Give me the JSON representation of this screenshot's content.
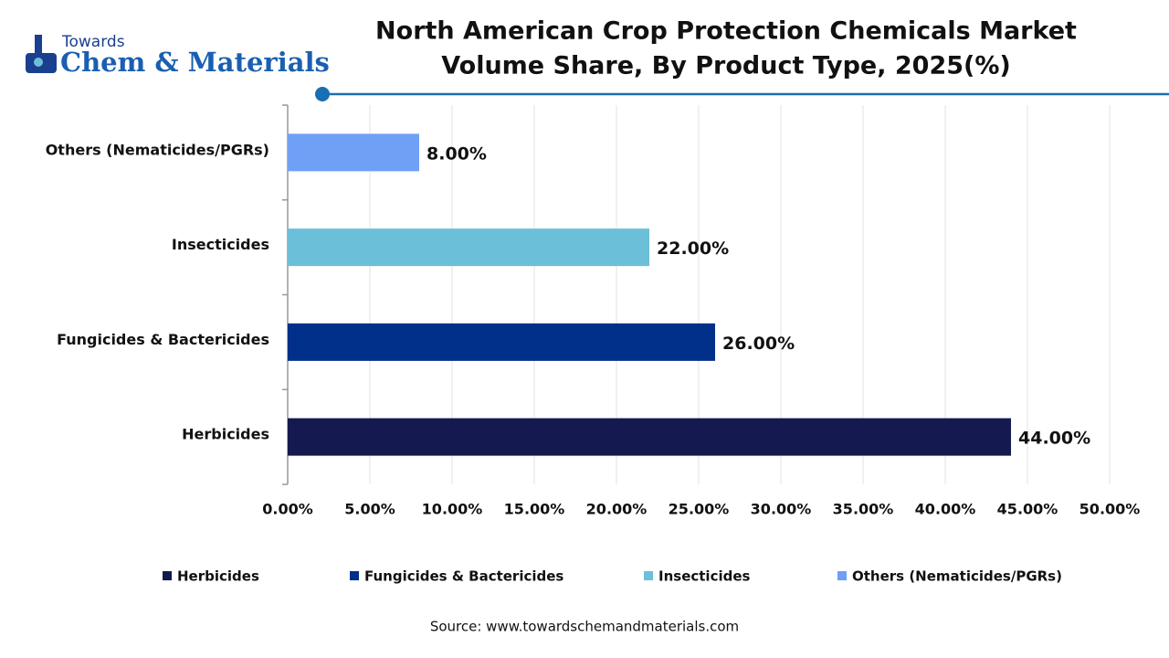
{
  "logo": {
    "top": "Towards",
    "main": "Chem & Materials"
  },
  "chart_data": {
    "type": "bar",
    "orientation": "horizontal",
    "title": [
      "North American Crop Protection Chemicals Market",
      "Volume Share, By Product Type, 2025(%)"
    ],
    "categories": [
      "Herbicides",
      "Fungicides & Bactericides",
      "Insecticides",
      "Others (Nematicides/PGRs)"
    ],
    "values": [
      44,
      26,
      22,
      8
    ],
    "value_labels": [
      "44.00%",
      "26.00%",
      "22.00%",
      "8.00%"
    ],
    "colors": [
      "#14194f",
      "#00308a",
      "#6cbfd9",
      "#6fa0f5"
    ],
    "xlim": [
      0,
      50
    ],
    "xticks": [
      {
        "value": 0,
        "label": "0.00%"
      },
      {
        "value": 5,
        "label": "5.00%"
      },
      {
        "value": 10,
        "label": "10.00%"
      },
      {
        "value": 15,
        "label": "15.00%"
      },
      {
        "value": 20,
        "label": "20.00%"
      },
      {
        "value": 25,
        "label": "25.00%"
      },
      {
        "value": 30,
        "label": "30.00%"
      },
      {
        "value": 35,
        "label": "35.00%"
      },
      {
        "value": 40,
        "label": "40.00%"
      },
      {
        "value": 45,
        "label": "45.00%"
      },
      {
        "value": 50,
        "label": "50.00%"
      }
    ],
    "grid": true,
    "legend": "bottom",
    "source": "Source: www.towardschemandmaterials.com"
  }
}
